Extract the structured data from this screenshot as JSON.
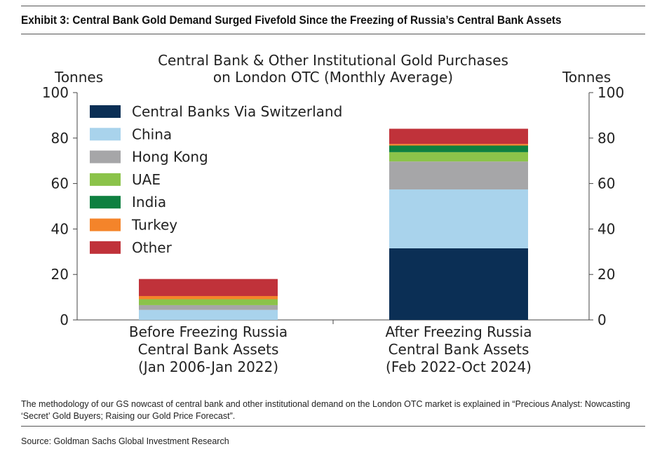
{
  "exhibit_title": "Exhibit 3: Central Bank Gold Demand Surged Fivefold Since the Freezing of Russia’s Central Bank Assets",
  "footnote": "The methodology of our GS nowcast of central bank and other institutional demand on the London OTC market is explained in “Precious Analyst: Nowcasting ‘Secret’ Gold Buyers; Raising our Gold Price Forecast”.",
  "source": "Source: Goldman Sachs Global Investment Research",
  "chart_data": {
    "type": "bar",
    "stacked": true,
    "title": [
      "Central Bank & Other Institutional Gold Purchases",
      "on London OTC (Monthly Average)"
    ],
    "ylabel_left": "Tonnes",
    "ylabel_right": "Tonnes",
    "ylim": [
      0,
      100
    ],
    "yticks": [
      0,
      20,
      40,
      60,
      80,
      100
    ],
    "categories": [
      [
        "Before Freezing Russia",
        "Central Bank Assets",
        "(Jan 2006-Jan 2022)"
      ],
      [
        "After Freezing Russia",
        "Central Bank Assets",
        "(Feb 2022-Oct 2024)"
      ]
    ],
    "legend_position": "top-left",
    "series": [
      {
        "name": "Central Banks Via Switzerland",
        "color": "#0b2f55",
        "values": [
          0,
          31.5
        ]
      },
      {
        "name": "China",
        "color": "#a9d3ec",
        "values": [
          4.4,
          25.9
        ]
      },
      {
        "name": "Hong Kong",
        "color": "#a6a6a8",
        "values": [
          2.1,
          12.3
        ]
      },
      {
        "name": "UAE",
        "color": "#8bc34a",
        "values": [
          2.6,
          4.1
        ]
      },
      {
        "name": "India",
        "color": "#0e8040",
        "values": [
          0,
          2.9
        ]
      },
      {
        "name": "Turkey",
        "color": "#f4842a",
        "values": [
          1.4,
          0.7
        ]
      },
      {
        "name": "Other",
        "color": "#c0323a",
        "values": [
          7.5,
          6.7
        ]
      }
    ]
  }
}
